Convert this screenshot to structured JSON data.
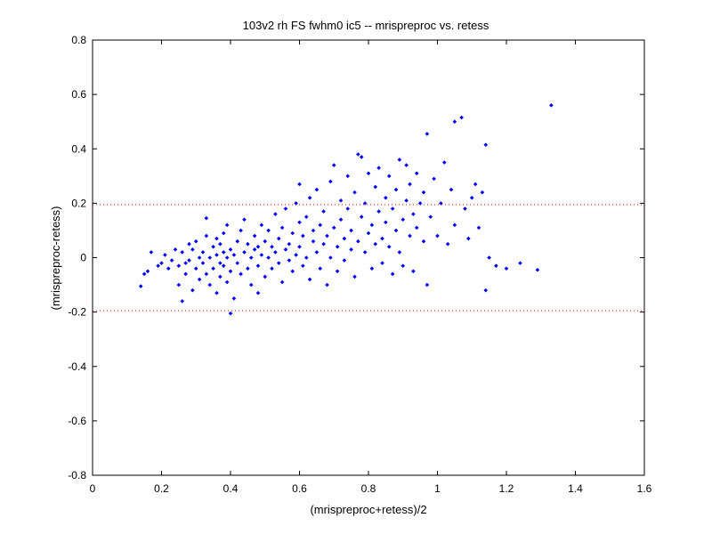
{
  "chart_data": {
    "type": "scatter",
    "title": "103v2 rh FS fwhm0 ic5 -- mrispreproc vs. retess",
    "xlabel": "(mrispreproc+retess)/2",
    "ylabel": "(mrispreproc-retess)",
    "xlim": [
      0,
      1.6
    ],
    "ylim": [
      -0.8,
      0.8
    ],
    "xticks": [
      "0",
      "0.2",
      "0.4",
      "0.6",
      "0.8",
      "1",
      "1.2",
      "1.4",
      "1.6"
    ],
    "yticks": [
      "-0.8",
      "-0.6",
      "-0.4",
      "-0.2",
      "0",
      "0.2",
      "0.4",
      "0.6",
      "0.8"
    ],
    "grid": false,
    "marker_color": "#0000ff",
    "reference_lines": [
      {
        "y": 0.195,
        "color": "#ff0000",
        "style": "dotted"
      },
      {
        "y": -0.195,
        "color": "#ff0000",
        "style": "dotted"
      }
    ],
    "points": [
      [
        0.14,
        -0.105
      ],
      [
        0.15,
        -0.06
      ],
      [
        0.16,
        -0.05
      ],
      [
        0.17,
        0.02
      ],
      [
        0.19,
        -0.03
      ],
      [
        0.2,
        -0.02
      ],
      [
        0.21,
        0.01
      ],
      [
        0.22,
        -0.04
      ],
      [
        0.23,
        -0.01
      ],
      [
        0.24,
        0.03
      ],
      [
        0.25,
        -0.03
      ],
      [
        0.25,
        -0.1
      ],
      [
        0.26,
        -0.16
      ],
      [
        0.26,
        0.02
      ],
      [
        0.27,
        -0.02
      ],
      [
        0.27,
        -0.06
      ],
      [
        0.28,
        0.05
      ],
      [
        0.28,
        -0.01
      ],
      [
        0.29,
        0.03
      ],
      [
        0.29,
        -0.12
      ],
      [
        0.3,
        -0.04
      ],
      [
        0.3,
        0.06
      ],
      [
        0.31,
        0.0
      ],
      [
        0.31,
        -0.08
      ],
      [
        0.32,
        0.02
      ],
      [
        0.32,
        -0.02
      ],
      [
        0.33,
        0.08
      ],
      [
        0.33,
        -0.06
      ],
      [
        0.33,
        0.145
      ],
      [
        0.34,
        0.0
      ],
      [
        0.34,
        -0.1
      ],
      [
        0.35,
        0.04
      ],
      [
        0.35,
        -0.04
      ],
      [
        0.36,
        0.07
      ],
      [
        0.36,
        0.01
      ],
      [
        0.36,
        -0.13
      ],
      [
        0.37,
        -0.02
      ],
      [
        0.37,
        0.05
      ],
      [
        0.37,
        -0.07
      ],
      [
        0.38,
        0.02
      ],
      [
        0.38,
        0.09
      ],
      [
        0.38,
        -0.03
      ],
      [
        0.39,
        0.0
      ],
      [
        0.39,
        -0.09
      ],
      [
        0.39,
        0.12
      ],
      [
        0.4,
        0.03
      ],
      [
        0.4,
        -0.05
      ],
      [
        0.4,
        -0.205
      ],
      [
        0.41,
        0.01
      ],
      [
        0.41,
        -0.15
      ],
      [
        0.42,
        0.06
      ],
      [
        0.42,
        -0.02
      ],
      [
        0.43,
        0.1
      ],
      [
        0.43,
        -0.06
      ],
      [
        0.44,
        0.14
      ],
      [
        0.44,
        0.02
      ],
      [
        0.45,
        -0.04
      ],
      [
        0.45,
        0.05
      ],
      [
        0.46,
        0.0
      ],
      [
        0.46,
        -0.1
      ],
      [
        0.47,
        0.08
      ],
      [
        0.47,
        0.03
      ],
      [
        0.48,
        -0.03
      ],
      [
        0.48,
        0.04
      ],
      [
        0.48,
        -0.13
      ],
      [
        0.49,
        0.12
      ],
      [
        0.49,
        0.01
      ],
      [
        0.5,
        0.06
      ],
      [
        0.5,
        -0.07
      ],
      [
        0.51,
        0.0
      ],
      [
        0.51,
        0.1
      ],
      [
        0.52,
        0.04
      ],
      [
        0.52,
        -0.04
      ],
      [
        0.53,
        0.16
      ],
      [
        0.53,
        0.02
      ],
      [
        0.54,
        -0.02
      ],
      [
        0.54,
        0.07
      ],
      [
        0.55,
        0.11
      ],
      [
        0.55,
        -0.09
      ],
      [
        0.56,
        0.03
      ],
      [
        0.56,
        0.18
      ],
      [
        0.57,
        -0.01
      ],
      [
        0.57,
        0.05
      ],
      [
        0.58,
        0.09
      ],
      [
        0.58,
        -0.05
      ],
      [
        0.59,
        0.2
      ],
      [
        0.59,
        0.01
      ],
      [
        0.6,
        0.13
      ],
      [
        0.6,
        0.04
      ],
      [
        0.6,
        0.27
      ],
      [
        0.61,
        -0.03
      ],
      [
        0.61,
        0.08
      ],
      [
        0.62,
        0.0
      ],
      [
        0.62,
        0.15
      ],
      [
        0.63,
        0.22
      ],
      [
        0.63,
        -0.08
      ],
      [
        0.64,
        0.06
      ],
      [
        0.64,
        0.1
      ],
      [
        0.65,
        0.02
      ],
      [
        0.65,
        0.25
      ],
      [
        0.66,
        -0.04
      ],
      [
        0.66,
        0.12
      ],
      [
        0.67,
        0.05
      ],
      [
        0.67,
        0.17
      ],
      [
        0.68,
        -0.1
      ],
      [
        0.68,
        0.08
      ],
      [
        0.69,
        0.28
      ],
      [
        0.69,
        0.0
      ],
      [
        0.7,
        0.34
      ],
      [
        0.7,
        0.11
      ],
      [
        0.71,
        0.04
      ],
      [
        0.71,
        -0.05
      ],
      [
        0.72,
        0.14
      ],
      [
        0.72,
        0.21
      ],
      [
        0.73,
        0.07
      ],
      [
        0.73,
        -0.01
      ],
      [
        0.74,
        0.18
      ],
      [
        0.74,
        0.3
      ],
      [
        0.75,
        0.03
      ],
      [
        0.75,
        0.1
      ],
      [
        0.76,
        0.24
      ],
      [
        0.76,
        -0.07
      ],
      [
        0.77,
        0.38
      ],
      [
        0.77,
        0.06
      ],
      [
        0.78,
        0.15
      ],
      [
        0.78,
        0.37
      ],
      [
        0.79,
        0.02
      ],
      [
        0.79,
        0.2
      ],
      [
        0.8,
        0.31
      ],
      [
        0.8,
        0.09
      ],
      [
        0.81,
        -0.04
      ],
      [
        0.81,
        0.12
      ],
      [
        0.82,
        0.26
      ],
      [
        0.82,
        0.05
      ],
      [
        0.83,
        0.17
      ],
      [
        0.83,
        0.33
      ],
      [
        0.84,
        0.07
      ],
      [
        0.84,
        -0.02
      ],
      [
        0.85,
        0.22
      ],
      [
        0.85,
        0.13
      ],
      [
        0.86,
        0.3
      ],
      [
        0.86,
        0.04
      ],
      [
        0.87,
        0.18
      ],
      [
        0.87,
        -0.06
      ],
      [
        0.88,
        0.1
      ],
      [
        0.88,
        0.25
      ],
      [
        0.89,
        0.02
      ],
      [
        0.89,
        0.36
      ],
      [
        0.9,
        0.14
      ],
      [
        0.9,
        -0.03
      ],
      [
        0.91,
        0.21
      ],
      [
        0.91,
        0.34
      ],
      [
        0.92,
        0.08
      ],
      [
        0.92,
        0.27
      ],
      [
        0.93,
        0.16
      ],
      [
        0.93,
        -0.05
      ],
      [
        0.94,
        0.11
      ],
      [
        0.94,
        0.31
      ],
      [
        0.95,
        0.2
      ],
      [
        0.96,
        0.06
      ],
      [
        0.96,
        0.24
      ],
      [
        0.97,
        0.455
      ],
      [
        0.97,
        -0.1
      ],
      [
        0.98,
        0.15
      ],
      [
        0.99,
        0.29
      ],
      [
        1.0,
        0.08
      ],
      [
        1.01,
        0.2
      ],
      [
        1.02,
        0.35
      ],
      [
        1.03,
        0.05
      ],
      [
        1.04,
        0.25
      ],
      [
        1.05,
        0.5
      ],
      [
        1.05,
        0.12
      ],
      [
        1.07,
        0.515
      ],
      [
        1.08,
        0.18
      ],
      [
        1.09,
        0.07
      ],
      [
        1.1,
        0.22
      ],
      [
        1.11,
        0.27
      ],
      [
        1.12,
        0.11
      ],
      [
        1.13,
        0.24
      ],
      [
        1.14,
        0.415
      ],
      [
        1.14,
        -0.12
      ],
      [
        1.15,
        0.0
      ],
      [
        1.17,
        -0.03
      ],
      [
        1.2,
        -0.04
      ],
      [
        1.24,
        -0.02
      ],
      [
        1.29,
        -0.045
      ],
      [
        1.33,
        0.56
      ]
    ]
  }
}
